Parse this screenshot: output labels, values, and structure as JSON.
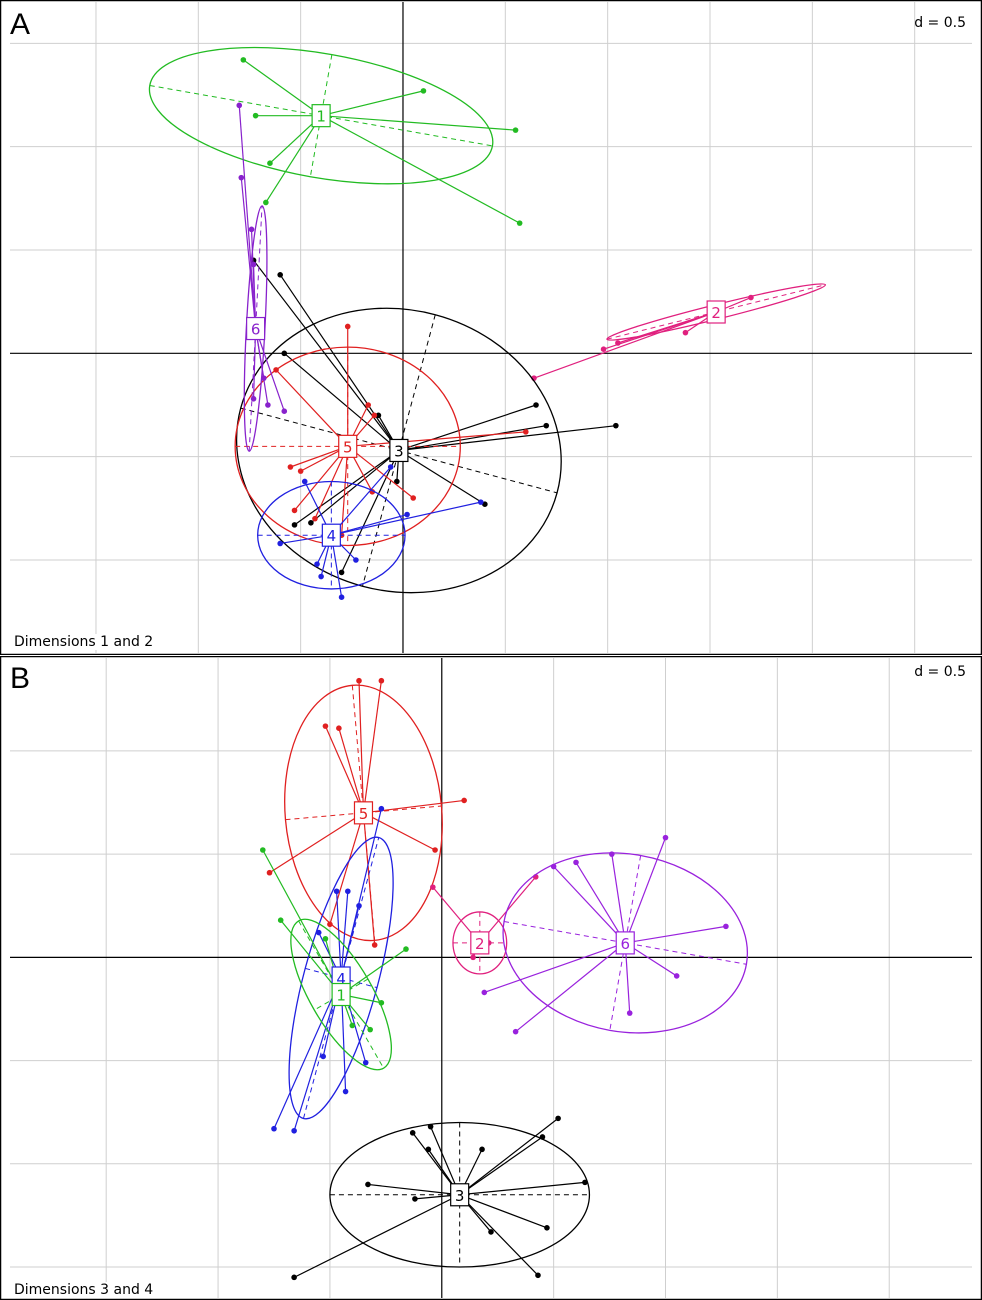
{
  "chart_data": [
    {
      "type": "scatter",
      "panel_label": "A",
      "scale_label": "d = 0.5",
      "footer_label": "Dimensions 1 and 2",
      "grid_step": 0.5,
      "xlim": [
        -1.92,
        2.78
      ],
      "ylim": [
        -1.45,
        1.7
      ],
      "groups": [
        {
          "label": "1",
          "color": "#22bb22",
          "center": [
            -0.4,
            1.15
          ],
          "ellipse": {
            "rx": 0.85,
            "ry": 0.3,
            "angle": -10
          },
          "points": [
            [
              -0.78,
              1.42
            ],
            [
              -0.72,
              1.15
            ],
            [
              -0.65,
              0.92
            ],
            [
              -0.67,
              0.73
            ],
            [
              0.1,
              1.27
            ],
            [
              0.55,
              1.08
            ],
            [
              0.57,
              0.63
            ]
          ]
        },
        {
          "label": "2",
          "color": "#e0207e",
          "center": [
            1.53,
            0.2
          ],
          "ellipse": {
            "rx": 0.55,
            "ry": 0.035,
            "angle": 14
          },
          "points": [
            [
              0.64,
              -0.12
            ],
            [
              0.98,
              0.02
            ],
            [
              1.38,
              0.1
            ],
            [
              1.7,
              0.27
            ],
            [
              1.05,
              0.05
            ]
          ]
        },
        {
          "label": "3",
          "color": "#000000",
          "center": [
            -0.02,
            -0.47
          ],
          "ellipse": {
            "rx": 0.8,
            "ry": 0.68,
            "angle": -15
          },
          "points": [
            [
              -0.73,
              0.45
            ],
            [
              -0.6,
              0.38
            ],
            [
              -0.58,
              0.0
            ],
            [
              -0.12,
              -0.3
            ],
            [
              0.65,
              -0.25
            ],
            [
              0.7,
              -0.35
            ],
            [
              1.04,
              -0.35
            ],
            [
              0.4,
              -0.73
            ],
            [
              -0.45,
              -0.82
            ],
            [
              -0.3,
              -1.06
            ],
            [
              -0.53,
              -0.83
            ],
            [
              -0.03,
              -0.62
            ]
          ]
        },
        {
          "label": "5",
          "color": "#e02020",
          "center": [
            -0.27,
            -0.45
          ],
          "ellipse": {
            "rx": 0.55,
            "ry": 0.48,
            "angle": 0
          },
          "points": [
            [
              -0.27,
              0.13
            ],
            [
              -0.62,
              -0.08
            ],
            [
              -0.55,
              -0.55
            ],
            [
              -0.53,
              -0.76
            ],
            [
              -0.3,
              -0.88
            ],
            [
              -0.15,
              -0.67
            ],
            [
              0.05,
              -0.7
            ],
            [
              -0.14,
              -0.3
            ],
            [
              -0.17,
              -0.25
            ],
            [
              0.6,
              -0.38
            ],
            [
              -0.43,
              -0.8
            ],
            [
              -0.5,
              -0.57
            ]
          ]
        },
        {
          "label": "4",
          "color": "#2020e0",
          "center": [
            -0.35,
            -0.88
          ],
          "ellipse": {
            "rx": 0.36,
            "ry": 0.26,
            "angle": 0
          },
          "points": [
            [
              -0.48,
              -0.62
            ],
            [
              -0.42,
              -1.02
            ],
            [
              -0.4,
              -1.08
            ],
            [
              -0.3,
              -1.18
            ],
            [
              -0.23,
              -1.0
            ],
            [
              -0.06,
              -0.55
            ],
            [
              0.38,
              -0.72
            ],
            [
              0.02,
              -0.78
            ],
            [
              -0.6,
              -0.92
            ]
          ]
        },
        {
          "label": "6",
          "color": "#8822cc",
          "center": [
            -0.72,
            0.12
          ],
          "ellipse": {
            "rx": 0.6,
            "ry": 0.045,
            "angle": 87
          },
          "points": [
            [
              -0.8,
              1.2
            ],
            [
              -0.79,
              0.85
            ],
            [
              -0.74,
              0.6
            ],
            [
              -0.73,
              0.43
            ],
            [
              -0.68,
              -0.12
            ],
            [
              -0.73,
              -0.22
            ],
            [
              -0.66,
              -0.25
            ],
            [
              -0.58,
              -0.28
            ]
          ]
        }
      ]
    },
    {
      "type": "scatter",
      "panel_label": "B",
      "scale_label": "d = 0.5",
      "footer_label": "Dimensions 3 and 4",
      "grid_step": 0.5,
      "xlim": [
        -1.93,
        2.37
      ],
      "ylim": [
        -1.65,
        1.45
      ],
      "groups": [
        {
          "label": "5",
          "color": "#e02020",
          "center": [
            -0.35,
            0.7
          ],
          "ellipse": {
            "rx": 0.35,
            "ry": 0.62,
            "angle": 5
          },
          "points": [
            [
              -0.37,
              1.34
            ],
            [
              -0.46,
              1.11
            ],
            [
              -0.27,
              1.34
            ],
            [
              -0.52,
              1.12
            ],
            [
              0.1,
              0.76
            ],
            [
              -0.03,
              0.52
            ],
            [
              -0.77,
              0.41
            ],
            [
              -0.5,
              0.16
            ],
            [
              -0.3,
              0.06
            ]
          ]
        },
        {
          "label": "2",
          "color": "#e0207e",
          "center": [
            0.17,
            0.07
          ],
          "ellipse": {
            "rx": 0.12,
            "ry": 0.15,
            "angle": 0
          },
          "points": [
            [
              -0.04,
              0.34
            ],
            [
              0.42,
              0.39
            ],
            [
              0.14,
              0.0
            ],
            [
              0.21,
              0.07
            ]
          ]
        },
        {
          "label": "6",
          "color": "#9922dd",
          "center": [
            0.82,
            0.07
          ],
          "ellipse": {
            "rx": 0.55,
            "ry": 0.43,
            "angle": -10
          },
          "points": [
            [
              0.5,
              0.44
            ],
            [
              0.76,
              0.5
            ],
            [
              1.0,
              0.58
            ],
            [
              1.27,
              0.15
            ],
            [
              1.05,
              -0.09
            ],
            [
              0.84,
              -0.27
            ],
            [
              0.19,
              -0.17
            ],
            [
              0.33,
              -0.36
            ],
            [
              0.6,
              0.46
            ]
          ]
        },
        {
          "label": "4",
          "color": "#2020e0",
          "center": [
            -0.45,
            -0.1
          ],
          "ellipse": {
            "rx": 0.65,
            "ry": 0.18,
            "angle": 75
          },
          "points": [
            [
              -0.27,
              0.72
            ],
            [
              -0.47,
              0.32
            ],
            [
              -0.55,
              0.12
            ],
            [
              -0.42,
              0.32
            ],
            [
              -0.34,
              -0.51
            ],
            [
              -0.43,
              -0.65
            ],
            [
              -0.75,
              -0.83
            ],
            [
              -0.66,
              -0.84
            ],
            [
              -0.53,
              -0.48
            ],
            [
              -0.37,
              0.25
            ]
          ]
        },
        {
          "label": "1",
          "color": "#22bb22",
          "center": [
            -0.45,
            -0.18
          ],
          "ellipse": {
            "rx": 0.38,
            "ry": 0.15,
            "angle": -60
          },
          "points": [
            [
              -0.8,
              0.52
            ],
            [
              -0.72,
              0.18
            ],
            [
              -0.16,
              0.04
            ],
            [
              -0.27,
              -0.22
            ],
            [
              -0.4,
              -0.33
            ],
            [
              -0.32,
              -0.35
            ],
            [
              -0.52,
              0.09
            ]
          ]
        },
        {
          "label": "3",
          "color": "#000000",
          "center": [
            0.08,
            -1.15
          ],
          "ellipse": {
            "rx": 0.58,
            "ry": 0.35,
            "angle": 0
          },
          "points": [
            [
              -0.13,
              -0.85
            ],
            [
              -0.05,
              -0.82
            ],
            [
              -0.06,
              -0.93
            ],
            [
              0.18,
              -0.93
            ],
            [
              0.45,
              -0.87
            ],
            [
              0.52,
              -0.78
            ],
            [
              0.64,
              -1.09
            ],
            [
              0.47,
              -1.31
            ],
            [
              0.22,
              -1.33
            ],
            [
              -0.33,
              -1.1
            ],
            [
              -0.12,
              -1.17
            ],
            [
              -0.66,
              -1.55
            ],
            [
              0.43,
              -1.54
            ]
          ]
        }
      ]
    }
  ]
}
